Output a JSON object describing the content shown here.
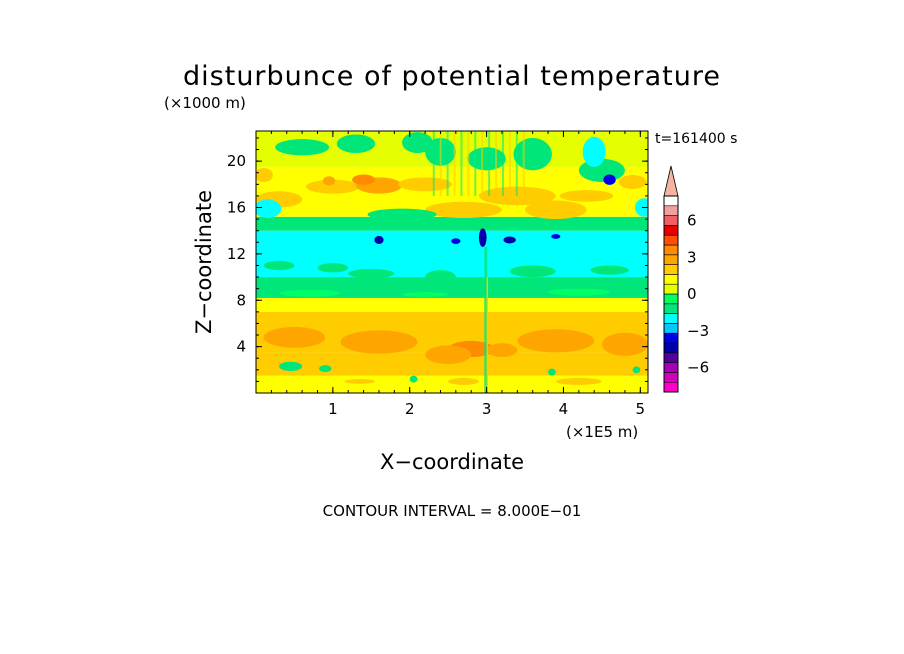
{
  "chart_data": {
    "type": "heatmap",
    "title": "disturbunce of potential temperature",
    "y_unit_label": "(×1000 m)",
    "x_unit_label": "(×1E5 m)",
    "xlabel": "X−coordinate",
    "ylabel": "Z−coordinate",
    "time_label": "t=161400 s",
    "footer": "CONTOUR INTERVAL = 8.000E−01",
    "xlim": [
      0,
      5.1
    ],
    "ylim": [
      0,
      22.6
    ],
    "x_ticks": [
      1,
      2,
      3,
      4,
      5
    ],
    "x_tick_labels": [
      "1",
      "2",
      "3",
      "4",
      "5"
    ],
    "y_ticks": [
      4,
      8,
      12,
      16,
      20
    ],
    "y_tick_labels": [
      "4",
      "8",
      "12",
      "16",
      "20"
    ],
    "colorbar": {
      "levels_bottom_to_top": [
        -8,
        -7.2,
        -6.4,
        -5.6,
        -4.8,
        -4.0,
        -3.2,
        -2.4,
        -1.6,
        -0.8,
        0,
        0.8,
        1.6,
        2.4,
        3.2,
        4.0,
        4.8,
        5.6,
        6.4,
        7.2,
        8
      ],
      "tick_values": [
        -6,
        -3,
        0,
        3,
        6
      ],
      "tick_labels": [
        "−6",
        "−3",
        "0",
        "3",
        "6"
      ],
      "colors_bottom_to_top": [
        "#ff00c8",
        "#d400c0",
        "#a800b4",
        "#5400a0",
        "#0000aa",
        "#0000e6",
        "#00c8ff",
        "#00ffff",
        "#00e678",
        "#00ff64",
        "#e6ff00",
        "#ffff00",
        "#ffcc00",
        "#ffa500",
        "#ff8c00",
        "#ff5000",
        "#e60000",
        "#f06060",
        "#f0a0a0",
        "#f5b4a0"
      ]
    },
    "field_bands": [
      {
        "z_range": [
          0,
          1.5
        ],
        "value": 0.4,
        "color": "#ffff00"
      },
      {
        "z_range": [
          1.5,
          3.5
        ],
        "value": 1.2,
        "color": "#ffcc00"
      },
      {
        "z_range": [
          3.5,
          7.0
        ],
        "value": 1.6,
        "color": "#ffcc00"
      },
      {
        "z_range": [
          7.0,
          8.2
        ],
        "value": 0.4,
        "color": "#ffff00"
      },
      {
        "z_range": [
          8.2,
          10.0
        ],
        "value": -0.4,
        "color": "#00e678"
      },
      {
        "z_range": [
          10.0,
          14.0
        ],
        "value": -1.2,
        "color": "#00ffff"
      },
      {
        "z_range": [
          14.0,
          15.2
        ],
        "value": -0.4,
        "color": "#00e678"
      },
      {
        "z_range": [
          15.2,
          19.5
        ],
        "value": 0.8,
        "color": "#ffff00"
      },
      {
        "z_range": [
          19.5,
          22.6
        ],
        "value": 0.4,
        "color": "#e6ff00"
      }
    ]
  }
}
